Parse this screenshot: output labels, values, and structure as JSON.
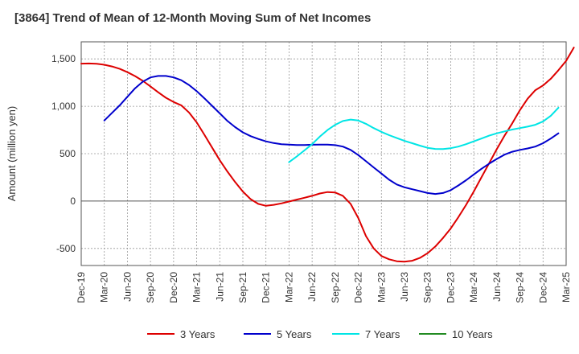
{
  "chart_data": {
    "type": "line",
    "title": "[3864]  Trend of Mean of 12-Month Moving Sum of Net Incomes",
    "xlabel": "",
    "ylabel": "Amount (million yen)",
    "x_ticks": [
      "Dec-19",
      "Mar-20",
      "Jun-20",
      "Sep-20",
      "Dec-20",
      "Mar-21",
      "Jun-21",
      "Sep-21",
      "Dec-21",
      "Mar-22",
      "Jun-22",
      "Sep-22",
      "Dec-22",
      "Mar-23",
      "Jun-23",
      "Sep-23",
      "Dec-23",
      "Mar-24",
      "Jun-24",
      "Sep-24",
      "Dec-24",
      "Mar-25"
    ],
    "y_ticks": [
      -500,
      0,
      500,
      1000,
      1500
    ],
    "y_tick_labels": [
      "-500",
      "0",
      "500",
      "1,000",
      "1,500"
    ],
    "xlim": [
      "Dec-19",
      "Mar-25"
    ],
    "ylim": [
      -680,
      1680
    ],
    "grid": true,
    "legend_position": "bottom",
    "series": [
      {
        "name": "3 Years",
        "color": "#dd0000",
        "points": [
          [
            "Dec-19",
            1450
          ],
          [
            "Jan-20",
            1452
          ],
          [
            "Feb-20",
            1448
          ],
          [
            "Mar-20",
            1438
          ],
          [
            "Apr-20",
            1420
          ],
          [
            "May-20",
            1395
          ],
          [
            "Jun-20",
            1360
          ],
          [
            "Jul-20",
            1318
          ],
          [
            "Aug-20",
            1268
          ],
          [
            "Sep-20",
            1210
          ],
          [
            "Oct-20",
            1148
          ],
          [
            "Nov-20",
            1090
          ],
          [
            "Dec-20",
            1045
          ],
          [
            "Jan-21",
            1010
          ],
          [
            "Feb-21",
            935
          ],
          [
            "Mar-21",
            830
          ],
          [
            "Apr-21",
            700
          ],
          [
            "May-21",
            565
          ],
          [
            "Jun-21",
            430
          ],
          [
            "Jul-21",
            310
          ],
          [
            "Aug-21",
            200
          ],
          [
            "Sep-21",
            100
          ],
          [
            "Oct-21",
            20
          ],
          [
            "Nov-21",
            -30
          ],
          [
            "Dec-21",
            -50
          ],
          [
            "Jan-22",
            -40
          ],
          [
            "Feb-22",
            -25
          ],
          [
            "Mar-22",
            -5
          ],
          [
            "Apr-22",
            15
          ],
          [
            "May-22",
            35
          ],
          [
            "Jun-22",
            55
          ],
          [
            "Jul-22",
            80
          ],
          [
            "Aug-22",
            95
          ],
          [
            "Sep-22",
            90
          ],
          [
            "Oct-22",
            55
          ],
          [
            "Nov-22",
            -30
          ],
          [
            "Dec-22",
            -180
          ],
          [
            "Jan-23",
            -370
          ],
          [
            "Feb-23",
            -500
          ],
          [
            "Mar-23",
            -580
          ],
          [
            "Apr-23",
            -615
          ],
          [
            "May-23",
            -635
          ],
          [
            "Jun-23",
            -640
          ],
          [
            "Jul-23",
            -630
          ],
          [
            "Aug-23",
            -600
          ],
          [
            "Sep-23",
            -550
          ],
          [
            "Oct-23",
            -480
          ],
          [
            "Nov-23",
            -390
          ],
          [
            "Dec-23",
            -290
          ],
          [
            "Jan-24",
            -170
          ],
          [
            "Feb-24",
            -40
          ],
          [
            "Mar-24",
            100
          ],
          [
            "Apr-24",
            250
          ],
          [
            "May-24",
            400
          ],
          [
            "Jun-24",
            550
          ],
          [
            "Jul-24",
            690
          ],
          [
            "Aug-24",
            820
          ],
          [
            "Sep-24",
            960
          ],
          [
            "Oct-24",
            1080
          ],
          [
            "Nov-24",
            1170
          ],
          [
            "Dec-24",
            1220
          ],
          [
            "Jan-25",
            1290
          ],
          [
            "Feb-25",
            1380
          ],
          [
            "Mar-25",
            1480
          ],
          [
            "Apr-25",
            1620
          ]
        ]
      },
      {
        "name": "5 Years",
        "color": "#0000cc",
        "points": [
          [
            "Mar-20",
            850
          ],
          [
            "Apr-20",
            930
          ],
          [
            "May-20",
            1010
          ],
          [
            "Jun-20",
            1100
          ],
          [
            "Jul-20",
            1190
          ],
          [
            "Aug-20",
            1260
          ],
          [
            "Sep-20",
            1305
          ],
          [
            "Oct-20",
            1320
          ],
          [
            "Nov-20",
            1320
          ],
          [
            "Dec-20",
            1305
          ],
          [
            "Jan-21",
            1275
          ],
          [
            "Feb-21",
            1225
          ],
          [
            "Mar-21",
            1160
          ],
          [
            "Apr-21",
            1085
          ],
          [
            "May-21",
            1005
          ],
          [
            "Jun-21",
            925
          ],
          [
            "Jul-21",
            845
          ],
          [
            "Aug-21",
            780
          ],
          [
            "Sep-21",
            725
          ],
          [
            "Oct-21",
            685
          ],
          [
            "Nov-21",
            655
          ],
          [
            "Dec-21",
            630
          ],
          [
            "Jan-22",
            612
          ],
          [
            "Feb-22",
            600
          ],
          [
            "Mar-22",
            595
          ],
          [
            "Apr-22",
            592
          ],
          [
            "May-22",
            592
          ],
          [
            "Jun-22",
            594
          ],
          [
            "Jul-22",
            596
          ],
          [
            "Aug-22",
            595
          ],
          [
            "Sep-22",
            590
          ],
          [
            "Oct-22",
            575
          ],
          [
            "Nov-22",
            540
          ],
          [
            "Dec-22",
            485
          ],
          [
            "Jan-23",
            420
          ],
          [
            "Feb-23",
            355
          ],
          [
            "Mar-23",
            290
          ],
          [
            "Apr-23",
            225
          ],
          [
            "May-23",
            175
          ],
          [
            "Jun-23",
            145
          ],
          [
            "Jul-23",
            125
          ],
          [
            "Aug-23",
            105
          ],
          [
            "Sep-23",
            85
          ],
          [
            "Oct-23",
            75
          ],
          [
            "Nov-23",
            85
          ],
          [
            "Dec-23",
            115
          ],
          [
            "Jan-24",
            165
          ],
          [
            "Feb-24",
            220
          ],
          [
            "Mar-24",
            280
          ],
          [
            "Apr-24",
            340
          ],
          [
            "May-24",
            395
          ],
          [
            "Jun-24",
            445
          ],
          [
            "Jul-24",
            490
          ],
          [
            "Aug-24",
            520
          ],
          [
            "Sep-24",
            540
          ],
          [
            "Oct-24",
            555
          ],
          [
            "Nov-24",
            575
          ],
          [
            "Dec-24",
            610
          ],
          [
            "Jan-25",
            660
          ],
          [
            "Feb-25",
            715
          ]
        ]
      },
      {
        "name": "7 Years",
        "color": "#00e5e5",
        "points": [
          [
            "Mar-22",
            410
          ],
          [
            "Apr-22",
            470
          ],
          [
            "May-22",
            535
          ],
          [
            "Jun-22",
            600
          ],
          [
            "Jul-22",
            680
          ],
          [
            "Aug-22",
            750
          ],
          [
            "Sep-22",
            805
          ],
          [
            "Oct-22",
            845
          ],
          [
            "Nov-22",
            860
          ],
          [
            "Dec-22",
            850
          ],
          [
            "Jan-23",
            815
          ],
          [
            "Feb-23",
            770
          ],
          [
            "Mar-23",
            730
          ],
          [
            "Apr-23",
            695
          ],
          [
            "May-23",
            665
          ],
          [
            "Jun-23",
            635
          ],
          [
            "Jul-23",
            610
          ],
          [
            "Aug-23",
            585
          ],
          [
            "Sep-23",
            562
          ],
          [
            "Oct-23",
            550
          ],
          [
            "Nov-23",
            548
          ],
          [
            "Dec-23",
            558
          ],
          [
            "Jan-24",
            575
          ],
          [
            "Feb-24",
            600
          ],
          [
            "Mar-24",
            630
          ],
          [
            "Apr-24",
            660
          ],
          [
            "May-24",
            690
          ],
          [
            "Jun-24",
            715
          ],
          [
            "Jul-24",
            735
          ],
          [
            "Aug-24",
            755
          ],
          [
            "Sep-24",
            770
          ],
          [
            "Oct-24",
            785
          ],
          [
            "Nov-24",
            805
          ],
          [
            "Dec-24",
            840
          ],
          [
            "Jan-25",
            900
          ],
          [
            "Feb-25",
            985
          ]
        ]
      },
      {
        "name": "10 Years",
        "color": "#228b22",
        "points": []
      }
    ]
  }
}
